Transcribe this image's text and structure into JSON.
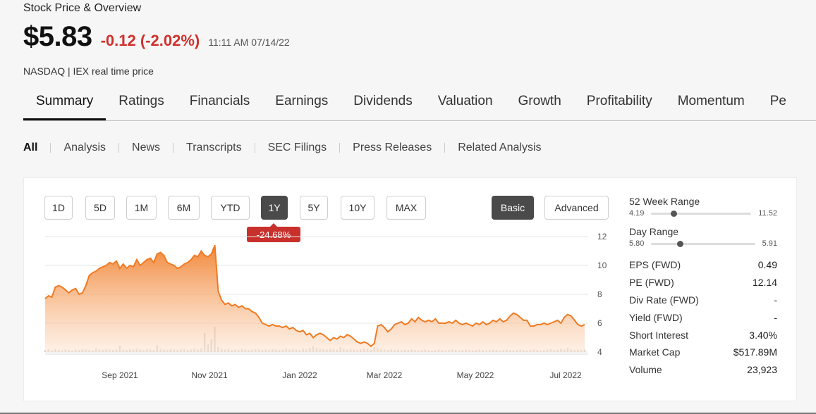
{
  "header": {
    "title": "Stock Price & Overview",
    "price": "$5.83",
    "change": "-0.12 (-2.02%)",
    "timestamp": "11:11 AM 07/14/22",
    "source": "NASDAQ | IEX real time price"
  },
  "tabs": [
    "Summary",
    "Ratings",
    "Financials",
    "Earnings",
    "Dividends",
    "Valuation",
    "Growth",
    "Profitability",
    "Momentum",
    "Pe"
  ],
  "active_tab": "Summary",
  "subtabs": [
    "All",
    "Analysis",
    "News",
    "Transcripts",
    "SEC Filings",
    "Press Releases",
    "Related Analysis"
  ],
  "active_subtab": "All",
  "range_buttons": [
    "1D",
    "5D",
    "1M",
    "6M",
    "YTD",
    "1Y",
    "5Y",
    "10Y",
    "MAX"
  ],
  "active_range": "1Y",
  "view_buttons": {
    "basic": "Basic",
    "advanced": "Advanced"
  },
  "period_change": "-24.68%",
  "stats": {
    "week52": {
      "label": "52 Week Range",
      "low": "4.19",
      "high": "11.52",
      "current": 5.83
    },
    "day": {
      "label": "Day Range",
      "low": "5.80",
      "high": "5.91",
      "current": 5.83
    },
    "rows": [
      {
        "label": "EPS (FWD)",
        "value": "0.49"
      },
      {
        "label": "PE (FWD)",
        "value": "12.14"
      },
      {
        "label": "Div Rate (FWD)",
        "value": "-"
      },
      {
        "label": "Yield (FWD)",
        "value": "-"
      },
      {
        "label": "Short Interest",
        "value": "3.40%"
      },
      {
        "label": "Market Cap",
        "value": "$517.89M"
      },
      {
        "label": "Volume",
        "value": "23,923"
      }
    ]
  },
  "colors": {
    "accent": "#f07a22",
    "negative": "#d0302c",
    "active_button": "#4a4a4a"
  },
  "chart_data": {
    "type": "area",
    "x_tick_labels": [
      "Sep 2021",
      "Nov 2021",
      "Jan 2022",
      "Mar 2022",
      "May 2022",
      "Jul 2022"
    ],
    "y_ticks": [
      4,
      6,
      8,
      10,
      12
    ],
    "ylim": [
      4,
      12
    ],
    "grid": true,
    "series": [
      {
        "values": [
          7.7,
          7.9,
          7.8,
          8.5,
          8.6,
          8.5,
          8.3,
          8.1,
          8.3,
          8.4,
          8.0,
          8.1,
          8.6,
          9.3,
          9.5,
          9.6,
          9.8,
          9.9,
          10.0,
          10.2,
          10.1,
          10.3,
          9.8,
          10.1,
          9.8,
          10.0,
          9.9,
          10.4,
          10.0,
          10.2,
          10.4,
          10.5,
          10.2,
          10.8,
          10.9,
          10.7,
          10.2,
          10.1,
          10.0,
          9.8,
          9.9,
          10.1,
          10.2,
          10.4,
          10.7,
          10.6,
          11.0,
          10.7,
          10.6,
          10.8,
          11.4,
          8.2,
          7.6,
          7.3,
          7.4,
          7.2,
          7.3,
          7.1,
          7.2,
          7.0,
          7.0,
          6.8,
          6.7,
          6.4,
          6.0,
          5.9,
          5.8,
          5.9,
          5.8,
          5.8,
          5.7,
          5.8,
          5.6,
          5.7,
          5.5,
          5.4,
          5.5,
          5.2,
          5.3,
          5.0,
          5.2,
          5.3,
          5.2,
          5.0,
          4.8,
          5.0,
          4.9,
          5.1,
          5.0,
          5.2,
          5.1,
          4.9,
          4.7,
          4.6,
          4.7,
          4.6,
          4.4,
          4.6,
          5.8,
          5.9,
          5.7,
          5.4,
          5.6,
          5.9,
          6.0,
          6.1,
          5.9,
          6.0,
          6.3,
          6.1,
          6.4,
          6.2,
          6.1,
          6.2,
          6.1,
          6.3,
          6.0,
          6.0,
          6.0,
          6.1,
          6.0,
          6.2,
          6.0,
          5.9,
          6.0,
          5.9,
          5.8,
          6.0,
          5.9,
          6.1,
          5.9,
          6.0,
          6.2,
          6.1,
          6.3,
          6.1,
          6.2,
          6.5,
          6.7,
          6.6,
          6.4,
          6.2,
          6.2,
          5.8,
          5.8,
          5.9,
          5.9,
          6.0,
          5.9,
          6.0,
          6.1,
          6.2,
          6.0,
          6.4,
          6.6,
          6.5,
          6.2,
          5.9,
          5.8,
          5.9
        ],
        "volume": [
          0.05,
          0.06,
          0.04,
          0.07,
          0.05,
          0.04,
          0.06,
          0.05,
          0.04,
          0.06,
          0.05,
          0.07,
          0.06,
          0.05,
          0.04,
          0.08,
          0.06,
          0.05,
          0.07,
          0.06,
          0.05,
          0.06,
          0.15,
          0.06,
          0.05,
          0.07,
          0.06,
          0.08,
          0.06,
          0.05,
          0.07,
          0.06,
          0.05,
          0.16,
          0.08,
          0.06,
          0.05,
          0.07,
          0.06,
          0.05,
          0.06,
          0.07,
          0.05,
          0.06,
          0.08,
          0.06,
          0.09,
          0.45,
          0.18,
          0.3,
          0.6,
          0.12,
          0.08,
          0.06,
          0.07,
          0.05,
          0.06,
          0.05,
          0.07,
          0.06,
          0.05,
          0.06,
          0.07,
          0.06,
          0.05,
          0.06,
          0.05,
          0.07,
          0.06,
          0.05,
          0.06,
          0.08,
          0.06,
          0.07,
          0.06,
          0.05,
          0.08,
          0.07,
          0.1,
          0.14,
          0.1,
          0.08,
          0.07,
          0.06,
          0.08,
          0.07,
          0.06,
          0.12,
          0.08,
          0.06,
          0.07,
          0.06,
          0.05,
          0.06,
          0.08,
          0.07,
          0.06,
          0.12,
          0.09,
          0.07,
          0.06,
          0.05,
          0.06,
          0.05,
          0.06,
          0.05,
          0.06,
          0.05,
          0.06,
          0.05,
          0.04,
          0.05,
          0.06,
          0.05,
          0.04,
          0.05,
          0.06,
          0.05,
          0.04,
          0.05,
          0.06,
          0.05,
          0.04,
          0.05,
          0.06,
          0.05,
          0.04,
          0.05,
          0.06,
          0.05,
          0.04,
          0.05,
          0.06,
          0.05,
          0.04,
          0.05,
          0.06,
          0.05,
          0.04,
          0.05,
          0.06,
          0.05,
          0.04,
          0.05,
          0.06,
          0.05,
          0.04,
          0.05,
          0.06,
          0.07,
          0.05,
          0.06,
          0.08,
          0.06,
          0.1,
          0.06,
          0.05,
          0.06,
          0.05,
          0.06
        ]
      }
    ]
  }
}
